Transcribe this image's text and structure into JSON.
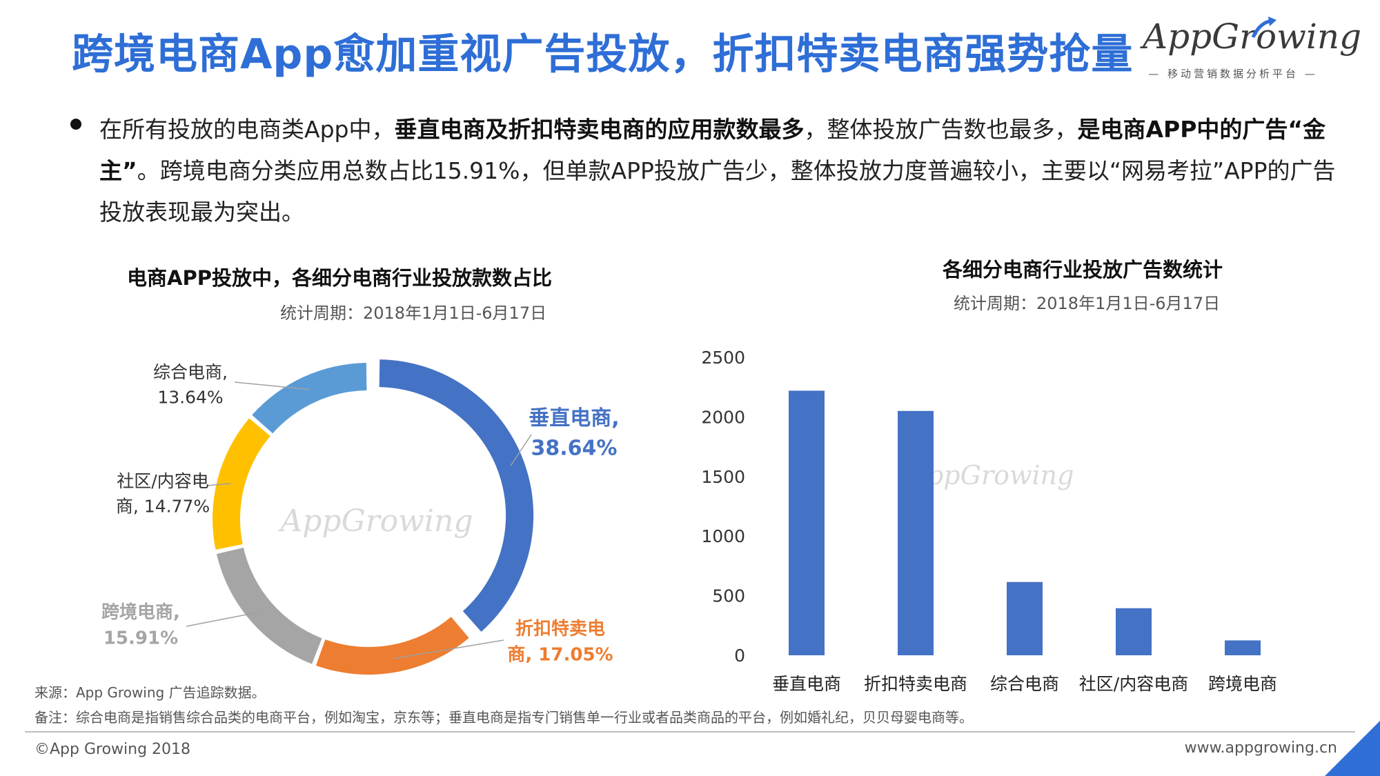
{
  "header": {
    "title": "跨境电商App愈加重视广告投放，折扣特卖电商强势抢量",
    "logo_text": "AppGrowing",
    "logo_sub": "— 移动营销数据分析平台 —"
  },
  "bullet": {
    "p1": "在所有投放的电商类App中，",
    "b1": "垂直电商及折扣特卖电商的应用款数最多",
    "p2": "，整体投放广告数也最多，",
    "b2": "是电商APP中的广告“金主”",
    "p3": "。跨境电商分类应用总数占比15.91%，但单款APP投放广告少，整体投放力度普遍较小，主要以“网易考拉”APP的广告投放表现最为突出。"
  },
  "donut": {
    "title": "电商APP投放中，各细分电商行业投放款数占比",
    "subtitle": "统计周期：2018年1月1日-6月17日",
    "watermark": "AppGrowing"
  },
  "bar": {
    "title": "各细分电商行业投放广告数统计",
    "subtitle": "统计周期：2018年1月1日-6月17日",
    "watermark": "AppGrowing"
  },
  "colors": {
    "title_blue": "#2e6ed6",
    "vertical": "#4472c4",
    "discount": "#ed7d31",
    "cross": "#a5a5a5",
    "community": "#ffc000",
    "general": "#5b9bd5",
    "bar": "#4472c4"
  },
  "chart_data": [
    {
      "type": "pie",
      "style": "donut",
      "title": "电商APP投放中，各细分电商行业投放款数占比",
      "subtitle": "统计周期：2018年1月1日-6月17日",
      "slices": [
        {
          "name": "垂直电商",
          "value": 38.64,
          "label_line1": "垂直电商,",
          "label_line2": "38.64%",
          "color": "#4472c4"
        },
        {
          "name": "折扣特卖电商",
          "value": 17.05,
          "label_line1": "折扣特卖电",
          "label_line2": "商, 17.05%",
          "color": "#ed7d31"
        },
        {
          "name": "跨境电商",
          "value": 15.91,
          "label_line1": "跨境电商,",
          "label_line2": "15.91%",
          "color": "#a5a5a5"
        },
        {
          "name": "社区/内容电商",
          "value": 14.77,
          "label_line1": "社区/内容电",
          "label_line2": "商, 14.77%",
          "color": "#ffc000"
        },
        {
          "name": "综合电商",
          "value": 13.64,
          "label_line1": "综合电商,",
          "label_line2": "13.64%",
          "color": "#5b9bd5"
        }
      ]
    },
    {
      "type": "bar",
      "title": "各细分电商行业投放广告数统计",
      "subtitle": "统计周期：2018年1月1日-6月17日",
      "categories": [
        "垂直电商",
        "折扣特卖电商",
        "综合电商",
        "社区/内容电商",
        "跨境电商"
      ],
      "values": [
        2220,
        2050,
        615,
        395,
        125
      ],
      "ylim": [
        0,
        2500
      ],
      "yticks": [
        0,
        500,
        1000,
        1500,
        2000,
        2500
      ],
      "grid": false
    }
  ],
  "footer": {
    "source": "来源：App Growing 广告追踪数据。",
    "note": "备注：综合电商是指销售综合品类的电商平台，例如淘宝，京东等；垂直电商是指专门销售单一行业或者品类商品的平台，例如婚礼纪，贝贝母婴电商等。",
    "copyright": "©App Growing 2018",
    "site": "www.appgrowing.cn"
  }
}
